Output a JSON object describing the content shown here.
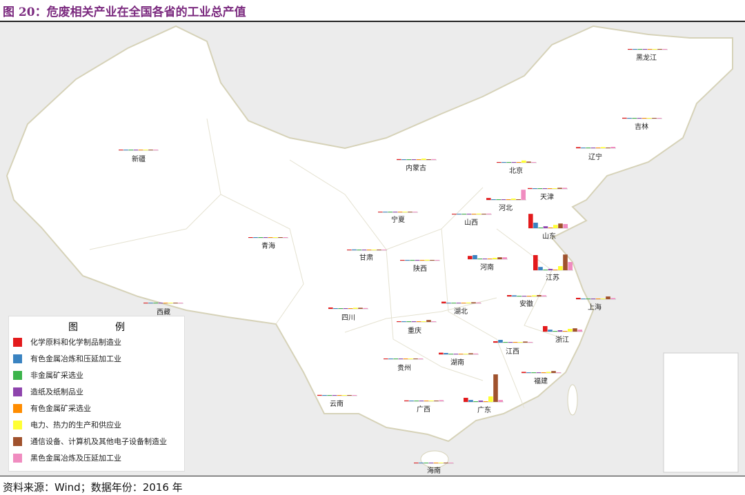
{
  "title": "图 20：危废相关产业在全国各省的工业总产值",
  "source": "资料来源：Wind；数据年份：2016 年",
  "legend": {
    "title": "图　例",
    "items": [
      {
        "label": "化学原料和化学制品制造业",
        "color": "#e31a1c"
      },
      {
        "label": "有色金属冶炼和压延加工业",
        "color": "#3a83c1"
      },
      {
        "label": "非金属矿采选业",
        "color": "#3cb44b"
      },
      {
        "label": "造纸及纸制品业",
        "color": "#8e44ad"
      },
      {
        "label": "有色金属矿采选业",
        "color": "#ff8c00"
      },
      {
        "label": "电力、热力的生产和供应业",
        "color": "#ffff33"
      },
      {
        "label": "通信设备、计算机及其他电子设备制造业",
        "color": "#a0522d"
      },
      {
        "label": "黑色金属冶炼及压延加工业",
        "color": "#f08cc0"
      }
    ]
  },
  "chart_data": {
    "type": "bar",
    "series_order": [
      "化学原料和化学制品制造业",
      "有色金属冶炼和压延加工业",
      "非金属矿采选业",
      "造纸及纸制品业",
      "有色金属矿采选业",
      "电力、热力的生产和供应业",
      "通信设备、计算机及其他电子设备制造业",
      "黑色金属冶炼及压延加工业"
    ],
    "provinces": [
      {
        "name": "新疆",
        "values": [
          2,
          1,
          0.5,
          0.5,
          0.5,
          2,
          0.5,
          1
        ]
      },
      {
        "name": "内蒙古",
        "values": [
          3,
          2,
          1,
          0.5,
          1,
          5,
          0.5,
          3
        ]
      },
      {
        "name": "黑龙江",
        "values": [
          2,
          1,
          0.5,
          0.5,
          0.5,
          2,
          0.5,
          1
        ]
      },
      {
        "name": "吉林",
        "values": [
          3,
          1,
          0.5,
          0.5,
          0.5,
          2,
          1,
          2
        ]
      },
      {
        "name": "辽宁",
        "values": [
          4,
          2,
          1,
          0.5,
          1,
          4,
          1,
          5
        ]
      },
      {
        "name": "北京",
        "values": [
          1,
          0.5,
          0.5,
          0.5,
          0.5,
          8,
          4,
          0.5
        ]
      },
      {
        "name": "天津",
        "values": [
          3,
          1,
          0.5,
          0.5,
          0.5,
          2,
          4,
          4
        ]
      },
      {
        "name": "河北",
        "values": [
          7,
          1,
          1,
          1,
          1,
          5,
          1,
          37
        ]
      },
      {
        "name": "山西",
        "values": [
          2,
          1,
          0.5,
          0.5,
          0.5,
          3,
          1,
          3
        ]
      },
      {
        "name": "山东",
        "values": [
          52,
          20,
          1,
          7,
          1,
          12,
          17,
          15
        ]
      },
      {
        "name": "宁夏",
        "values": [
          1,
          1,
          0.5,
          0.5,
          0.5,
          1,
          0.5,
          0.5
        ]
      },
      {
        "name": "青海",
        "values": [
          1,
          1,
          0.5,
          0.5,
          0.5,
          1,
          0.5,
          0.5
        ]
      },
      {
        "name": "甘肃",
        "values": [
          1,
          3,
          0.5,
          0.5,
          0.5,
          1,
          0.5,
          1
        ]
      },
      {
        "name": "陕西",
        "values": [
          2,
          2,
          0.5,
          0.5,
          1,
          3,
          2,
          2
        ]
      },
      {
        "name": "河南",
        "values": [
          12,
          15,
          1,
          1,
          1,
          5,
          7,
          7
        ]
      },
      {
        "name": "江苏",
        "values": [
          55,
          12,
          1,
          5,
          1,
          15,
          57,
          30
        ]
      },
      {
        "name": "安徽",
        "values": [
          5,
          4,
          1,
          1,
          1,
          4,
          5,
          4
        ]
      },
      {
        "name": "上海",
        "values": [
          5,
          1,
          0.5,
          0.5,
          0.5,
          2,
          10,
          4
        ]
      },
      {
        "name": "西藏",
        "values": [
          0.5,
          0.5,
          0.5,
          0.5,
          0.5,
          0.5,
          0.5,
          0.5
        ]
      },
      {
        "name": "四川",
        "values": [
          5,
          2,
          1,
          1,
          1,
          4,
          4,
          3
        ]
      },
      {
        "name": "湖北",
        "values": [
          6,
          2,
          1,
          1,
          1,
          3,
          4,
          3
        ]
      },
      {
        "name": "重庆",
        "values": [
          2,
          1,
          0.5,
          0.5,
          0.5,
          2,
          7,
          2
        ]
      },
      {
        "name": "浙江",
        "values": [
          20,
          7,
          1,
          5,
          1,
          10,
          12,
          7
        ]
      },
      {
        "name": "江西",
        "values": [
          5,
          10,
          1,
          1,
          1,
          2,
          4,
          2
        ]
      },
      {
        "name": "湖南",
        "values": [
          6,
          5,
          1,
          1,
          1,
          2,
          4,
          3
        ]
      },
      {
        "name": "贵州",
        "values": [
          2,
          1,
          0.5,
          0.5,
          0.5,
          2,
          0.5,
          0.5
        ]
      },
      {
        "name": "福建",
        "values": [
          4,
          2,
          1,
          1,
          1,
          4,
          7,
          2
        ]
      },
      {
        "name": "云南",
        "values": [
          3,
          2,
          1,
          0.5,
          1,
          2,
          0.5,
          2
        ]
      },
      {
        "name": "广西",
        "values": [
          3,
          2,
          1,
          0.5,
          1,
          2,
          1,
          4
        ]
      },
      {
        "name": "广东",
        "values": [
          15,
          7,
          1,
          5,
          1,
          20,
          100,
          7
        ]
      },
      {
        "name": "海南",
        "values": [
          0.5,
          0.5,
          0.5,
          0.5,
          0.5,
          0.5,
          0.5,
          0.5
        ]
      }
    ]
  }
}
